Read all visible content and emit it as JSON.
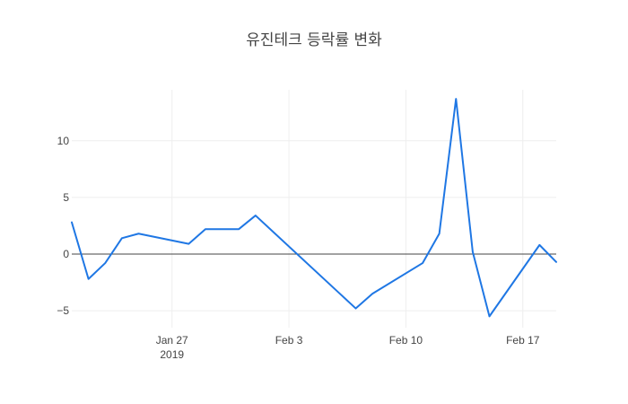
{
  "chart_data": {
    "type": "line",
    "title": "유진테크 등락률 변화",
    "xlabel": "",
    "ylabel": "",
    "x_range": [
      "2019-01-21",
      "2019-02-19"
    ],
    "ylim": [
      -6.5,
      14.5
    ],
    "y_ticks": [
      {
        "value": -5,
        "label": "−5"
      },
      {
        "value": 0,
        "label": "0"
      },
      {
        "value": 5,
        "label": "5"
      },
      {
        "value": 10,
        "label": "10"
      }
    ],
    "x_ticks": [
      {
        "date": "2019-01-27",
        "label": "Jan 27",
        "sublabel": "2019"
      },
      {
        "date": "2019-02-03",
        "label": "Feb 3",
        "sublabel": ""
      },
      {
        "date": "2019-02-10",
        "label": "Feb 10",
        "sublabel": ""
      },
      {
        "date": "2019-02-17",
        "label": "Feb 17",
        "sublabel": ""
      }
    ],
    "grid": true,
    "zero_line": true,
    "series": [
      {
        "color": "#1f77e4",
        "points": [
          {
            "x": "2019-01-21",
            "y": 2.8
          },
          {
            "x": "2019-01-22",
            "y": -2.2
          },
          {
            "x": "2019-01-23",
            "y": -0.8
          },
          {
            "x": "2019-01-24",
            "y": 1.4
          },
          {
            "x": "2019-01-25",
            "y": 1.8
          },
          {
            "x": "2019-01-28",
            "y": 0.9
          },
          {
            "x": "2019-01-29",
            "y": 2.2
          },
          {
            "x": "2019-01-30",
            "y": 2.2
          },
          {
            "x": "2019-01-31",
            "y": 2.2
          },
          {
            "x": "2019-02-01",
            "y": 3.4
          },
          {
            "x": "2019-02-07",
            "y": -4.8
          },
          {
            "x": "2019-02-08",
            "y": -3.5
          },
          {
            "x": "2019-02-11",
            "y": -0.8
          },
          {
            "x": "2019-02-12",
            "y": 1.8
          },
          {
            "x": "2019-02-13",
            "y": 13.7
          },
          {
            "x": "2019-02-14",
            "y": 0.2
          },
          {
            "x": "2019-02-15",
            "y": -5.5
          },
          {
            "x": "2019-02-18",
            "y": 0.8
          },
          {
            "x": "2019-02-19",
            "y": -0.7
          }
        ]
      }
    ]
  }
}
